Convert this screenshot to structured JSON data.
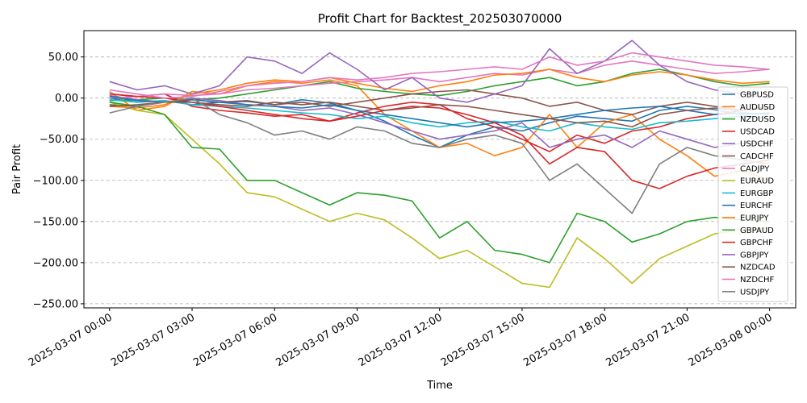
{
  "chart_data": {
    "type": "line",
    "title": "Profit Chart for Backtest_202503070000",
    "xlabel": "Time",
    "ylabel": "Pair Profit",
    "xlim": [
      "2025-03-06 23:04",
      "2025-03-08 00:57"
    ],
    "ylim": [
      -255,
      82
    ],
    "grid": {
      "x": false,
      "y": true,
      "style": "dashed"
    },
    "legend_position": "right",
    "x_ticks": [
      "2025-03-07 00:00",
      "2025-03-07 03:00",
      "2025-03-07 06:00",
      "2025-03-07 09:00",
      "2025-03-07 12:00",
      "2025-03-07 15:00",
      "2025-03-07 18:00",
      "2025-03-07 21:00",
      "2025-03-08 00:00"
    ],
    "y_ticks": [
      "50.00",
      "0.00",
      "−50.00",
      "−100.00",
      "−150.00",
      "−200.00",
      "−250.00"
    ],
    "y_tick_values": [
      50,
      0,
      -50,
      -100,
      -150,
      -200,
      -250
    ],
    "x": [
      "2025-03-07 00:00",
      "2025-03-07 01:00",
      "2025-03-07 02:00",
      "2025-03-07 03:00",
      "2025-03-07 04:00",
      "2025-03-07 05:00",
      "2025-03-07 06:00",
      "2025-03-07 07:00",
      "2025-03-07 08:00",
      "2025-03-07 09:00",
      "2025-03-07 10:00",
      "2025-03-07 11:00",
      "2025-03-07 12:00",
      "2025-03-07 13:00",
      "2025-03-07 14:00",
      "2025-03-07 15:00",
      "2025-03-07 16:00",
      "2025-03-07 17:00",
      "2025-03-07 18:00",
      "2025-03-07 19:00",
      "2025-03-07 20:00",
      "2025-03-07 21:00",
      "2025-03-07 22:00",
      "2025-03-07 23:00",
      "2025-03-08 00:00"
    ],
    "series": [
      {
        "name": "GBPUSD",
        "color": "#1f77b4",
        "values": [
          0,
          -5,
          -3,
          -8,
          -5,
          -4,
          -8,
          -2,
          -6,
          -15,
          -28,
          -45,
          -60,
          -45,
          -35,
          -40,
          -30,
          -22,
          -25,
          -28,
          -15,
          -10,
          -14,
          -20,
          -18
        ]
      },
      {
        "name": "AUDUSD",
        "color": "#ff7f0e",
        "values": [
          8,
          -15,
          -10,
          8,
          5,
          15,
          20,
          18,
          22,
          15,
          -20,
          -40,
          -60,
          -55,
          -70,
          -60,
          -20,
          -60,
          -30,
          -20,
          -50,
          -70,
          -95,
          -88,
          -100
        ]
      },
      {
        "name": "NZDUSD",
        "color": "#2ca02c",
        "values": [
          -3,
          -2,
          0,
          -2,
          0,
          5,
          10,
          15,
          20,
          12,
          8,
          5,
          3,
          8,
          15,
          20,
          25,
          15,
          20,
          30,
          35,
          28,
          20,
          15,
          18
        ]
      },
      {
        "name": "USDCAD",
        "color": "#d62728",
        "values": [
          5,
          2,
          5,
          -10,
          -15,
          -18,
          -22,
          -20,
          -28,
          -18,
          -10,
          -5,
          -8,
          -25,
          -35,
          -50,
          -65,
          -45,
          -55,
          -40,
          -35,
          -25,
          -20,
          -15,
          -12
        ]
      },
      {
        "name": "USDCHF",
        "color": "#9467bd",
        "values": [
          3,
          -2,
          -5,
          0,
          -3,
          -8,
          -10,
          -15,
          -12,
          -20,
          -30,
          -40,
          -50,
          -45,
          -40,
          -30,
          -60,
          -50,
          -45,
          -60,
          -40,
          -50,
          -60,
          -55,
          -55
        ]
      },
      {
        "name": "CADCHF",
        "color": "#8c564b",
        "values": [
          -8,
          -10,
          -5,
          -2,
          -5,
          -3,
          -8,
          -5,
          -10,
          -5,
          0,
          5,
          8,
          10,
          5,
          0,
          -10,
          -5,
          -15,
          -20,
          -10,
          -5,
          -10,
          -15,
          -12
        ]
      },
      {
        "name": "CADJPY",
        "color": "#e377c2",
        "values": [
          0,
          2,
          5,
          3,
          5,
          10,
          12,
          15,
          18,
          20,
          22,
          25,
          20,
          25,
          30,
          28,
          35,
          30,
          40,
          45,
          40,
          35,
          30,
          32,
          35
        ]
      },
      {
        "name": "EURAUD",
        "color": "#bcbd22",
        "values": [
          -5,
          -15,
          -20,
          -50,
          -80,
          -115,
          -120,
          -135,
          -150,
          -140,
          -148,
          -170,
          -195,
          -185,
          -205,
          -225,
          -230,
          -170,
          -195,
          -225,
          -195,
          -180,
          -165,
          -160,
          -158
        ]
      },
      {
        "name": "EURGBP",
        "color": "#17becf",
        "values": [
          -2,
          -5,
          -3,
          -8,
          -10,
          -12,
          -15,
          -18,
          -20,
          -25,
          -22,
          -30,
          -35,
          -30,
          -28,
          -35,
          -40,
          -30,
          -35,
          -38,
          -30,
          -28,
          -25,
          -22,
          -25
        ]
      },
      {
        "name": "EURCHF",
        "color": "#1f77b4",
        "values": [
          2,
          -3,
          -5,
          -2,
          -5,
          -8,
          -10,
          -12,
          -8,
          -15,
          -20,
          -25,
          -30,
          -35,
          -30,
          -28,
          -25,
          -20,
          -15,
          -12,
          -10,
          -15,
          -20,
          -18,
          -20
        ]
      },
      {
        "name": "EURJPY",
        "color": "#ff7f0e",
        "values": [
          -10,
          -12,
          -8,
          5,
          10,
          18,
          22,
          20,
          25,
          18,
          12,
          8,
          15,
          20,
          28,
          30,
          35,
          25,
          20,
          28,
          32,
          28,
          22,
          18,
          20
        ]
      },
      {
        "name": "GBPAUD",
        "color": "#2ca02c",
        "values": [
          -5,
          -10,
          -20,
          -60,
          -62,
          -100,
          -100,
          -115,
          -130,
          -115,
          -118,
          -125,
          -170,
          -150,
          -185,
          -190,
          -200,
          -140,
          -150,
          -175,
          -165,
          -150,
          -145,
          -148,
          -150
        ]
      },
      {
        "name": "GBPCHF",
        "color": "#d62728",
        "values": [
          5,
          2,
          0,
          -5,
          -10,
          -15,
          -20,
          -25,
          -28,
          -22,
          -15,
          -10,
          -12,
          -20,
          -30,
          -45,
          -80,
          -60,
          -65,
          -100,
          -110,
          -95,
          -85,
          -80,
          -75
        ]
      },
      {
        "name": "GBPJPY",
        "color": "#9467bd",
        "values": [
          20,
          10,
          15,
          5,
          15,
          50,
          45,
          30,
          55,
          35,
          10,
          25,
          0,
          -5,
          5,
          15,
          60,
          30,
          45,
          70,
          40,
          20,
          10,
          5,
          0
        ]
      },
      {
        "name": "NZDCAD",
        "color": "#8c564b",
        "values": [
          -10,
          -8,
          -5,
          -5,
          -8,
          -10,
          -5,
          -8,
          -5,
          -10,
          -15,
          -12,
          -8,
          -10,
          -15,
          -20,
          -25,
          -30,
          -28,
          -35,
          -20,
          -15,
          -12,
          -15,
          -10
        ]
      },
      {
        "name": "NZDCHF",
        "color": "#e377c2",
        "values": [
          10,
          5,
          0,
          2,
          8,
          15,
          18,
          20,
          25,
          22,
          25,
          30,
          32,
          35,
          38,
          35,
          50,
          40,
          45,
          55,
          50,
          45,
          40,
          38,
          35
        ]
      },
      {
        "name": "USDJPY",
        "color": "#7f7f7f",
        "values": [
          -18,
          -10,
          -5,
          0,
          -20,
          -30,
          -45,
          -40,
          -50,
          -35,
          -40,
          -55,
          -60,
          -50,
          -45,
          -55,
          -100,
          -80,
          -110,
          -140,
          -80,
          -60,
          -70,
          -75,
          -80
        ]
      }
    ]
  }
}
